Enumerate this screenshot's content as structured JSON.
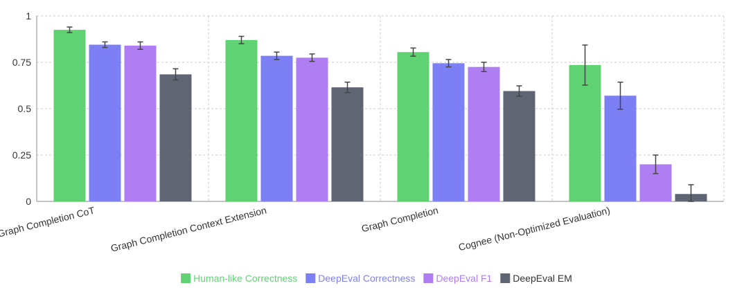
{
  "chart_data": {
    "type": "bar",
    "title": "",
    "xlabel": "",
    "ylabel": "",
    "ylim": [
      0,
      1
    ],
    "yticks": [
      0,
      0.25,
      0.5,
      0.75,
      1
    ],
    "ytick_labels": [
      "0",
      "0.25",
      "0.5",
      "0.75",
      "1"
    ],
    "grid": true,
    "legend_placement": "bottom-center",
    "categories": [
      "Graph Completion CoT",
      "Graph Completion Context Extension",
      "Graph Completion",
      "Cognee (Non-Optimized Evaluation)"
    ],
    "series": [
      {
        "name": "Human-like Correctness",
        "color": "#5fd373",
        "values": [
          0.925,
          0.87,
          0.805,
          0.735
        ],
        "errors": [
          0.015,
          0.02,
          0.022,
          0.108
        ]
      },
      {
        "name": "DeepEval Correctness",
        "color": "#7d80f4",
        "values": [
          0.845,
          0.785,
          0.745,
          0.57
        ],
        "errors": [
          0.015,
          0.02,
          0.02,
          0.073
        ]
      },
      {
        "name": "DeepEval F1",
        "color": "#ae7ef2",
        "values": [
          0.84,
          0.775,
          0.725,
          0.2
        ],
        "errors": [
          0.02,
          0.02,
          0.025,
          0.05
        ]
      },
      {
        "name": "DeepEval EM",
        "color": "#5f6573",
        "values": [
          0.685,
          0.615,
          0.595,
          0.04
        ],
        "errors": [
          0.03,
          0.028,
          0.028,
          0.05
        ]
      }
    ]
  }
}
